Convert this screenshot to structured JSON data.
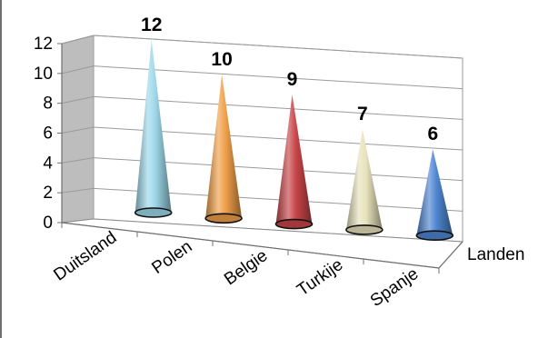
{
  "chart_data": {
    "type": "bar",
    "variant": "3d-cone",
    "categories": [
      "Duitsland",
      "Polen",
      "Belgie",
      "Turkije",
      "Spanje"
    ],
    "values": [
      12,
      10,
      9,
      7,
      6
    ],
    "data_labels": [
      "12",
      "10",
      "9",
      "7",
      "6"
    ],
    "y_ticks": [
      "0",
      "2",
      "4",
      "6",
      "8",
      "10",
      "12"
    ],
    "ylim": [
      0,
      12
    ],
    "xlabel": "Landen",
    "ylabel": "",
    "title": "",
    "grid": true,
    "legend": "none",
    "colors": [
      "#9ed8ea",
      "#f0a04a",
      "#c8464a",
      "#e7e2bb",
      "#4f86d0"
    ]
  }
}
